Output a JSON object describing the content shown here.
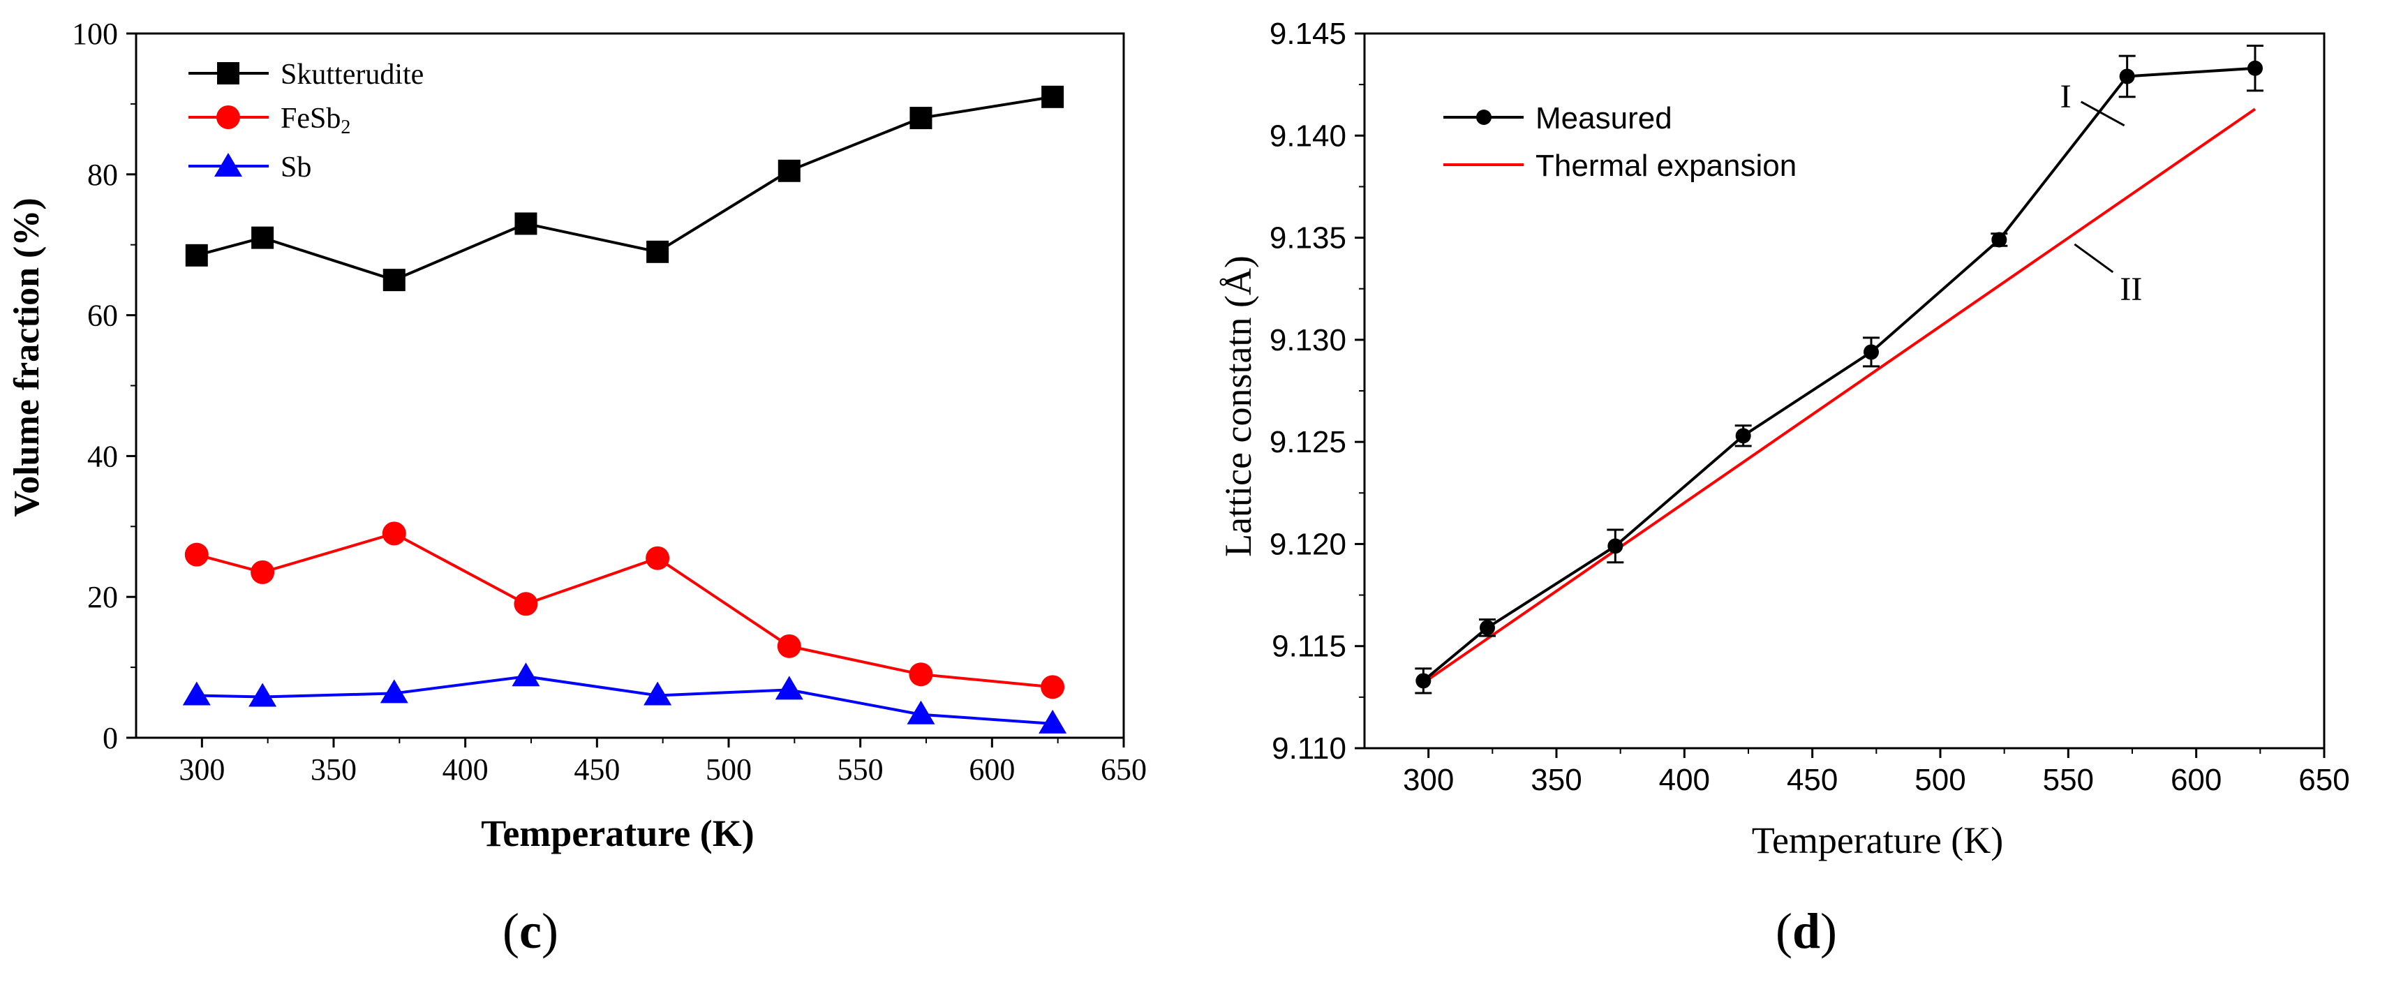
{
  "chart_data": [
    {
      "type": "line",
      "title": "",
      "panel_label": "(c)",
      "panel_letter": "c",
      "xlabel": "Temperature (K)",
      "ylabel": "Volume fraction (%)",
      "xlim": [
        275,
        650
      ],
      "ylim": [
        0,
        100
      ],
      "xticks": [
        "300",
        "350",
        "400",
        "450",
        "500",
        "550",
        "600",
        "650"
      ],
      "yticks": [
        "0",
        "20",
        "40",
        "60",
        "80",
        "100"
      ],
      "legend": "top-left",
      "x": [
        298,
        323,
        373,
        423,
        473,
        523,
        573,
        623
      ],
      "series": [
        {
          "name": "Skutterudite",
          "marker": "square",
          "color": "#000000",
          "values": [
            68.5,
            71,
            65,
            73,
            69,
            80.5,
            88,
            91
          ]
        },
        {
          "name": "FeSb2",
          "name_main": "FeSb",
          "name_sub": "2",
          "marker": "circle",
          "color": "#ff0000",
          "values": [
            26,
            23.5,
            29,
            19,
            25.5,
            13,
            9,
            7.2
          ]
        },
        {
          "name": "Sb",
          "marker": "triangle",
          "color": "#0000ff",
          "values": [
            6,
            5.8,
            6.3,
            8.7,
            6,
            6.8,
            3.3,
            2
          ]
        }
      ]
    },
    {
      "type": "line",
      "title": "",
      "panel_label": "(d)",
      "panel_letter": "d",
      "xlabel": "Temperature (K)",
      "ylabel": "Lattice constatn (Å)",
      "xlim": [
        275,
        650
      ],
      "ylim": [
        9.11,
        9.145
      ],
      "xticks": [
        "300",
        "350",
        "400",
        "450",
        "500",
        "550",
        "600",
        "650"
      ],
      "yticks": [
        "9.110",
        "9.115",
        "9.120",
        "9.125",
        "9.130",
        "9.135",
        "9.140",
        "9.145"
      ],
      "legend": "top-left",
      "series": [
        {
          "name": "Measured",
          "marker": "circle",
          "color": "#000000",
          "x": [
            298,
            323,
            373,
            423,
            473,
            523,
            573,
            623
          ],
          "values": [
            9.1133,
            9.1159,
            9.1199,
            9.1253,
            9.1294,
            9.1349,
            9.1429,
            9.1433
          ],
          "errors": [
            0.0006,
            0.0004,
            0.0008,
            0.0005,
            0.0007,
            0.0003,
            0.001,
            0.0011
          ]
        },
        {
          "name": "Thermal expansion",
          "color": "#ff0000",
          "x": [
            298,
            623
          ],
          "values": [
            9.1132,
            9.1413
          ]
        }
      ],
      "annotations": [
        {
          "text": "I",
          "x": 555,
          "y": 9.1407
        },
        {
          "text": "II",
          "x": 562,
          "y": 9.1328
        }
      ]
    }
  ]
}
